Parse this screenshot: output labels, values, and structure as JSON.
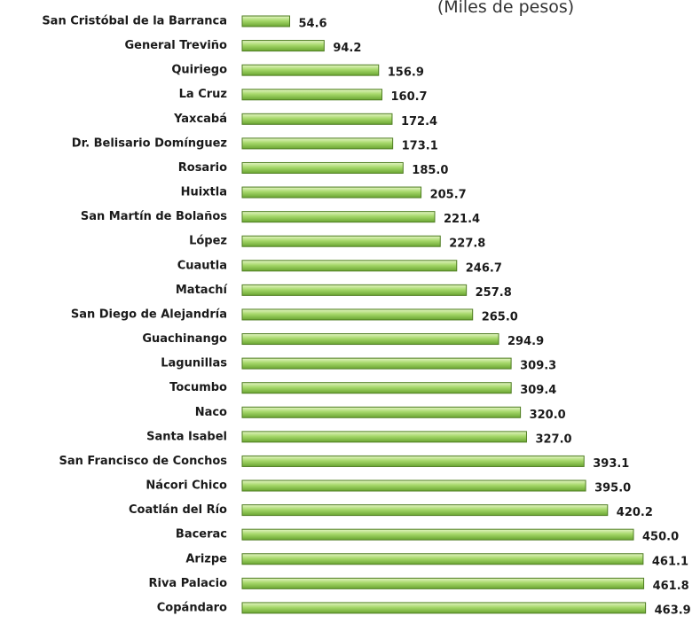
{
  "chart_data": {
    "type": "bar",
    "orientation": "horizontal",
    "subtitle": "(Miles de pesos)",
    "categories": [
      "San Cristóbal de la Barranca",
      "General Treviño",
      "Quiriego",
      "La Cruz",
      "Yaxcabá",
      "Dr. Belisario Domínguez",
      "Rosario",
      "Huixtla",
      "San Martín de Bolaños",
      "López",
      "Cuautla",
      "Matachí",
      "San Diego de Alejandría",
      "Guachinango",
      "Lagunillas",
      "Tocumbo",
      "Naco",
      "Santa Isabel",
      "San Francisco de Conchos",
      "Nácori Chico",
      "Coatlán del Río",
      "Bacerac",
      "Arizpe",
      "Riva Palacio",
      "Copándaro"
    ],
    "values": [
      54.6,
      94.2,
      156.9,
      160.7,
      172.4,
      173.1,
      185,
      205.7,
      221.4,
      227.8,
      246.7,
      257.8,
      265,
      294.9,
      309.3,
      309.4,
      320,
      327,
      393.1,
      395,
      420.2,
      450,
      461.1,
      461.8,
      463.9
    ],
    "value_labels": [
      "54.6",
      "94.2",
      "156.9",
      "160.7",
      "172.4",
      "173.1",
      "185.0",
      "205.7",
      "221.4",
      "227.8",
      "246.7",
      "257.8",
      "265.0",
      "294.9",
      "309.3",
      "309.4",
      "320.0",
      "327.0",
      "393.1",
      "395.0",
      "420.2",
      "450.0",
      "461.1",
      "461.8",
      "463.9"
    ],
    "color": "#8fc64a",
    "xlim": [
      0,
      500
    ]
  }
}
